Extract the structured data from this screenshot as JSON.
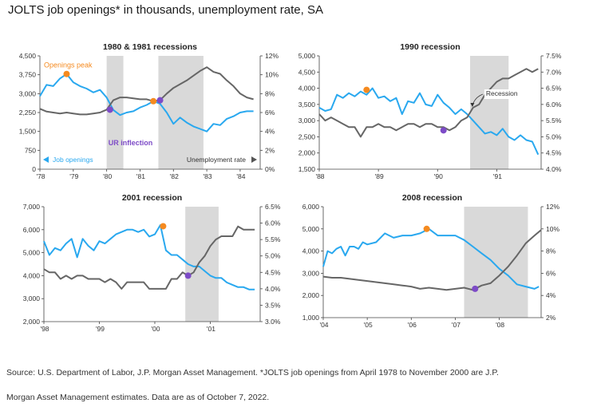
{
  "page_title": "JOLTS job openings* in thousands, unemployment rate, SA",
  "footnote_line1": "Source: U.S. Department of Labor, J.P. Morgan Asset Management. *JOLTS job openings from April 1978 to November 2000 are J.P.",
  "footnote_line2": "Morgan Asset Management estimates. Data are as of October 7, 2022.",
  "colors": {
    "job_openings": "#29a8ef",
    "unemployment": "#666666",
    "recession_band": "#d9d9d9",
    "peak_marker": "#f58a1f",
    "inflection_marker": "#7d4bc7"
  },
  "chart_data": [
    {
      "type": "line",
      "title": "1980 & 1981 recessions",
      "x_ticks": [
        "'78",
        "'79",
        "'80",
        "'81",
        "'82",
        "'83",
        "'84"
      ],
      "x_range": [
        1978.0,
        1984.6
      ],
      "left_axis": {
        "ticks": [
          "0",
          "750",
          "1,500",
          "2,250",
          "3,000",
          "3,750",
          "4,500"
        ],
        "ylim": [
          0,
          4500
        ]
      },
      "right_axis": {
        "ticks": [
          "0%",
          "2%",
          "4%",
          "6%",
          "8%",
          "10%",
          "12%"
        ],
        "ylim": [
          0,
          12
        ]
      },
      "recessions": [
        [
          1980.0,
          1980.5
        ],
        [
          1981.55,
          1982.9
        ]
      ],
      "series": [
        {
          "name": "Job openings",
          "axis": "left",
          "x": [
            1978.0,
            1978.2,
            1978.4,
            1978.6,
            1978.8,
            1979.0,
            1979.2,
            1979.4,
            1979.6,
            1979.8,
            1980.0,
            1980.2,
            1980.4,
            1980.6,
            1980.8,
            1981.0,
            1981.2,
            1981.4,
            1981.6,
            1981.8,
            1982.0,
            1982.2,
            1982.4,
            1982.6,
            1982.8,
            1983.0,
            1983.2,
            1983.4,
            1983.6,
            1983.8,
            1984.0,
            1984.2,
            1984.4
          ],
          "y": [
            2900,
            3350,
            3300,
            3600,
            3780,
            3450,
            3300,
            3200,
            3050,
            3150,
            2850,
            2350,
            2150,
            2250,
            2300,
            2450,
            2550,
            2700,
            2600,
            2250,
            1800,
            2050,
            1850,
            1700,
            1600,
            1500,
            1800,
            1750,
            2000,
            2100,
            2250,
            2300,
            2300
          ]
        },
        {
          "name": "Unemployment rate",
          "axis": "right",
          "x": [
            1978.0,
            1978.2,
            1978.4,
            1978.6,
            1978.8,
            1979.0,
            1979.2,
            1979.4,
            1979.6,
            1979.8,
            1980.0,
            1980.2,
            1980.4,
            1980.6,
            1980.8,
            1981.0,
            1981.2,
            1981.4,
            1981.6,
            1981.8,
            1982.0,
            1982.2,
            1982.4,
            1982.6,
            1982.8,
            1983.0,
            1983.2,
            1983.4,
            1983.6,
            1983.8,
            1984.0,
            1984.2,
            1984.4
          ],
          "y": [
            6.4,
            6.1,
            6.0,
            5.9,
            6.0,
            5.9,
            5.8,
            5.8,
            5.9,
            6.0,
            6.3,
            7.3,
            7.6,
            7.6,
            7.5,
            7.4,
            7.4,
            7.2,
            7.3,
            8.0,
            8.6,
            9.0,
            9.4,
            9.9,
            10.4,
            10.8,
            10.3,
            10.1,
            9.4,
            8.8,
            8.0,
            7.6,
            7.4
          ]
        }
      ],
      "markers": [
        {
          "series": "Job openings",
          "x": 1978.8,
          "y": 3780,
          "color": "peak"
        },
        {
          "series": "Job openings",
          "x": 1981.4,
          "y": 2700,
          "color": "peak"
        },
        {
          "series": "Unemployment rate",
          "x": 1980.1,
          "y": 6.3,
          "color": "inflection"
        },
        {
          "series": "Unemployment rate",
          "x": 1981.6,
          "y": 7.3,
          "color": "inflection"
        }
      ],
      "annotations": [
        "Openings peak",
        "UR inflection"
      ],
      "legend": [
        "Job openings",
        "Unemployment rate"
      ]
    },
    {
      "type": "line",
      "title": "1990 recession",
      "x_ticks": [
        "'88",
        "'89",
        "'90",
        "'91"
      ],
      "x_range": [
        1988.0,
        1991.75
      ],
      "left_axis": {
        "ticks": [
          "1,500",
          "2,000",
          "2,500",
          "3,000",
          "3,500",
          "4,000",
          "4,500",
          "5,000"
        ],
        "ylim": [
          1500,
          5000
        ]
      },
      "right_axis": {
        "ticks": [
          "4.0%",
          "4.5%",
          "5.0%",
          "5.5%",
          "6.0%",
          "6.5%",
          "7.0%",
          "7.5%"
        ],
        "ylim": [
          4.0,
          7.5
        ]
      },
      "recessions": [
        [
          1990.55,
          1991.2
        ]
      ],
      "series": [
        {
          "name": "Job openings",
          "axis": "left",
          "x": [
            1988.0,
            1988.1,
            1988.2,
            1988.3,
            1988.4,
            1988.5,
            1988.6,
            1988.7,
            1988.8,
            1988.9,
            1989.0,
            1989.1,
            1989.2,
            1989.3,
            1989.4,
            1989.5,
            1989.6,
            1989.7,
            1989.8,
            1989.9,
            1990.0,
            1990.1,
            1990.2,
            1990.3,
            1990.4,
            1990.5,
            1990.6,
            1990.7,
            1990.8,
            1990.9,
            1991.0,
            1991.1,
            1991.2,
            1991.3,
            1991.4,
            1991.5,
            1991.6,
            1991.7
          ],
          "y": [
            3400,
            3300,
            3350,
            3800,
            3700,
            3850,
            3750,
            3900,
            3800,
            4000,
            3700,
            3750,
            3600,
            3700,
            3200,
            3600,
            3550,
            3850,
            3500,
            3450,
            3800,
            3550,
            3400,
            3200,
            3350,
            3200,
            3000,
            2800,
            2600,
            2650,
            2550,
            2750,
            2500,
            2400,
            2550,
            2400,
            2350,
            1950
          ]
        },
        {
          "name": "Unemployment rate",
          "axis": "right",
          "x": [
            1988.0,
            1988.1,
            1988.2,
            1988.3,
            1988.4,
            1988.5,
            1988.6,
            1988.7,
            1988.8,
            1988.9,
            1989.0,
            1989.1,
            1989.2,
            1989.3,
            1989.4,
            1989.5,
            1989.6,
            1989.7,
            1989.8,
            1989.9,
            1990.0,
            1990.1,
            1990.2,
            1990.3,
            1990.4,
            1990.5,
            1990.6,
            1990.7,
            1990.8,
            1990.9,
            1991.0,
            1991.1,
            1991.2,
            1991.3,
            1991.4,
            1991.5,
            1991.6,
            1991.7
          ],
          "y": [
            5.7,
            5.5,
            5.6,
            5.5,
            5.4,
            5.3,
            5.3,
            5.0,
            5.3,
            5.3,
            5.4,
            5.3,
            5.3,
            5.2,
            5.3,
            5.4,
            5.4,
            5.3,
            5.4,
            5.4,
            5.3,
            5.3,
            5.2,
            5.3,
            5.5,
            5.6,
            5.9,
            6.0,
            6.3,
            6.5,
            6.7,
            6.8,
            6.8,
            6.9,
            7.0,
            7.1,
            7.0,
            7.1
          ]
        }
      ],
      "markers": [
        {
          "series": "Job openings",
          "x": 1988.8,
          "y": 3950,
          "color": "peak"
        },
        {
          "series": "Unemployment rate",
          "x": 1990.1,
          "y": 5.2,
          "color": "inflection"
        }
      ],
      "annotations": [
        "Recession"
      ]
    },
    {
      "type": "line",
      "title": "2001 recession",
      "x_ticks": [
        "'98",
        "'99",
        "'00",
        "'01"
      ],
      "x_range": [
        1998.0,
        2001.9
      ],
      "left_axis": {
        "ticks": [
          "2,000",
          "3,000",
          "4,000",
          "5,000",
          "6,000",
          "7,000"
        ],
        "ylim": [
          2000,
          7000
        ]
      },
      "right_axis": {
        "ticks": [
          "3.0%",
          "3.5%",
          "4.0%",
          "4.5%",
          "5.0%",
          "5.5%",
          "6.0%",
          "6.5%"
        ],
        "ylim": [
          3.0,
          6.5
        ]
      },
      "recessions": [
        [
          2000.55,
          2001.15
        ]
      ],
      "series": [
        {
          "name": "Job openings",
          "axis": "left",
          "x": [
            1998.0,
            1998.1,
            1998.2,
            1998.3,
            1998.4,
            1998.5,
            1998.6,
            1998.7,
            1998.8,
            1998.9,
            1999.0,
            1999.1,
            1999.2,
            1999.3,
            1999.4,
            1999.5,
            1999.6,
            1999.7,
            1999.8,
            1999.9,
            2000.0,
            2000.1,
            2000.2,
            2000.3,
            2000.4,
            2000.5,
            2000.6,
            2000.7,
            2000.8,
            2000.9,
            2001.0,
            2001.1,
            2001.2,
            2001.3,
            2001.4,
            2001.5,
            2001.6,
            2001.7,
            2001.8
          ],
          "y": [
            5500,
            4900,
            5200,
            5100,
            5400,
            5600,
            4800,
            5600,
            5300,
            5100,
            5500,
            5400,
            5600,
            5800,
            5900,
            6000,
            6000,
            5900,
            6000,
            5700,
            5800,
            6200,
            5100,
            4900,
            4900,
            4700,
            4500,
            4400,
            4400,
            4200,
            4000,
            3900,
            3900,
            3700,
            3600,
            3500,
            3500,
            3400,
            3400
          ]
        },
        {
          "name": "Unemployment rate",
          "axis": "right",
          "x": [
            1998.0,
            1998.1,
            1998.2,
            1998.3,
            1998.4,
            1998.5,
            1998.6,
            1998.7,
            1998.8,
            1998.9,
            1999.0,
            1999.1,
            1999.2,
            1999.3,
            1999.4,
            1999.5,
            1999.6,
            1999.7,
            1999.8,
            1999.9,
            2000.0,
            2000.1,
            2000.2,
            2000.3,
            2000.4,
            2000.5,
            2000.6,
            2000.7,
            2000.8,
            2000.9,
            2001.0,
            2001.1,
            2001.2,
            2001.3,
            2001.4,
            2001.5,
            2001.6,
            2001.7,
            2001.8
          ],
          "y": [
            4.6,
            4.5,
            4.5,
            4.3,
            4.4,
            4.3,
            4.4,
            4.4,
            4.3,
            4.3,
            4.3,
            4.2,
            4.3,
            4.2,
            4.0,
            4.2,
            4.2,
            4.2,
            4.2,
            4.0,
            4.0,
            4.0,
            4.0,
            4.3,
            4.3,
            4.5,
            4.4,
            4.5,
            4.8,
            5.0,
            5.3,
            5.5,
            5.6,
            5.6,
            5.6,
            5.9,
            5.8,
            5.8,
            5.8
          ]
        }
      ],
      "markers": [
        {
          "series": "Job openings",
          "x": 2000.15,
          "y": 6150,
          "color": "peak"
        },
        {
          "series": "Unemployment rate",
          "x": 2000.6,
          "y": 4.4,
          "color": "inflection"
        }
      ]
    },
    {
      "type": "line",
      "title": "2008 recession",
      "x_ticks": [
        "'04",
        "'05",
        "'06",
        "'07",
        "'08"
      ],
      "x_range": [
        2004.0,
        2008.95
      ],
      "left_axis": {
        "ticks": [
          "1,000",
          "2,000",
          "3,000",
          "4,000",
          "5,000",
          "6,000"
        ],
        "ylim": [
          1000,
          6000
        ]
      },
      "right_axis": {
        "ticks": [
          "2%",
          "4%",
          "6%",
          "8%",
          "10%",
          "12%"
        ],
        "ylim": [
          2,
          12
        ]
      },
      "recessions": [
        [
          2007.2,
          2008.65
        ]
      ],
      "series": [
        {
          "name": "Job openings",
          "axis": "left",
          "x": [
            2004.0,
            2004.1,
            2004.2,
            2004.3,
            2004.4,
            2004.5,
            2004.6,
            2004.7,
            2004.8,
            2004.9,
            2005.0,
            2005.2,
            2005.4,
            2005.6,
            2005.8,
            2006.0,
            2006.2,
            2006.4,
            2006.6,
            2006.8,
            2007.0,
            2007.2,
            2007.4,
            2007.6,
            2007.8,
            2008.0,
            2008.2,
            2008.4,
            2008.6,
            2008.8,
            2008.9
          ],
          "y": [
            3300,
            4000,
            3900,
            4100,
            4200,
            3800,
            4200,
            4200,
            4100,
            4400,
            4300,
            4400,
            4800,
            4600,
            4700,
            4700,
            4800,
            5000,
            4700,
            4700,
            4700,
            4500,
            4200,
            3900,
            3600,
            3200,
            2900,
            2500,
            2400,
            2300,
            2400
          ]
        },
        {
          "name": "Unemployment rate",
          "axis": "right",
          "x": [
            2004.0,
            2004.2,
            2004.4,
            2004.6,
            2004.8,
            2005.0,
            2005.2,
            2005.4,
            2005.6,
            2005.8,
            2006.0,
            2006.2,
            2006.4,
            2006.6,
            2006.8,
            2007.0,
            2007.2,
            2007.4,
            2007.6,
            2007.8,
            2008.0,
            2008.2,
            2008.4,
            2008.6,
            2008.8,
            2008.95
          ],
          "y": [
            5.7,
            5.6,
            5.6,
            5.5,
            5.4,
            5.3,
            5.2,
            5.1,
            5.0,
            4.9,
            4.8,
            4.6,
            4.7,
            4.6,
            4.5,
            4.6,
            4.7,
            4.5,
            4.9,
            5.1,
            5.8,
            6.6,
            7.6,
            8.7,
            9.4,
            9.9
          ]
        }
      ],
      "markers": [
        {
          "series": "Job openings",
          "x": 2006.35,
          "y": 5000,
          "color": "peak"
        },
        {
          "series": "Unemployment rate",
          "x": 2007.45,
          "y": 4.6,
          "color": "inflection"
        }
      ]
    }
  ]
}
